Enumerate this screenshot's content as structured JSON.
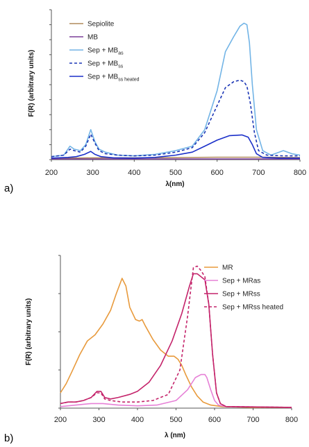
{
  "chart_data": [
    {
      "panel_label": "a)",
      "type": "line",
      "xlabel": "λ(nm)",
      "ylabel": "F(R) (arbitrary units)",
      "xlim": [
        200,
        800
      ],
      "ylim": [
        0,
        100
      ],
      "x_ticks": [
        "200",
        "300",
        "400",
        "500",
        "600",
        "700",
        "800"
      ],
      "y_tick_labels_shown": false,
      "grid": false,
      "legend_position": "top-left",
      "series": [
        {
          "name": "Sepiolite",
          "label_main": "Sepiolite",
          "label_sub": "",
          "color": "#b08a5c",
          "dash": "solid",
          "points": [
            [
              200,
              0.8
            ],
            [
              300,
              1.2
            ],
            [
              400,
              1.2
            ],
            [
              500,
              1.4
            ],
            [
              600,
              1.6
            ],
            [
              700,
              1.6
            ],
            [
              800,
              1.4
            ]
          ]
        },
        {
          "name": "MB",
          "label_main": "MB",
          "label_sub": "",
          "color": "#7b3f98",
          "dash": "solid",
          "points": [
            [
              200,
              0.4
            ],
            [
              800,
              0.4
            ]
          ]
        },
        {
          "name": "Sep + MBas",
          "label_main": "Sep + MB",
          "label_sub": "as",
          "color": "#72b4e6",
          "dash": "solid",
          "points": [
            [
              200,
              2
            ],
            [
              230,
              3
            ],
            [
              245,
              9
            ],
            [
              255,
              7
            ],
            [
              270,
              6
            ],
            [
              283,
              10
            ],
            [
              295,
              20
            ],
            [
              305,
              12
            ],
            [
              315,
              7
            ],
            [
              330,
              5
            ],
            [
              360,
              3
            ],
            [
              400,
              2.5
            ],
            [
              450,
              3.5
            ],
            [
              500,
              6
            ],
            [
              540,
              9
            ],
            [
              570,
              20
            ],
            [
              600,
              46
            ],
            [
              620,
              72
            ],
            [
              640,
              82
            ],
            [
              655,
              89
            ],
            [
              665,
              91
            ],
            [
              672,
              90
            ],
            [
              678,
              78
            ],
            [
              685,
              50
            ],
            [
              695,
              20
            ],
            [
              710,
              6
            ],
            [
              730,
              3
            ],
            [
              760,
              6
            ],
            [
              780,
              4
            ],
            [
              800,
              3
            ]
          ]
        },
        {
          "name": "Sep + MBss",
          "label_main": "Sep + MB",
          "label_sub": "ss",
          "color": "#1a35b5",
          "dash": "dashed",
          "points": [
            [
              200,
              2
            ],
            [
              230,
              3
            ],
            [
              245,
              7
            ],
            [
              255,
              6
            ],
            [
              270,
              5
            ],
            [
              283,
              9
            ],
            [
              295,
              17
            ],
            [
              305,
              11
            ],
            [
              315,
              6
            ],
            [
              330,
              4
            ],
            [
              360,
              3
            ],
            [
              400,
              2.5
            ],
            [
              450,
              3
            ],
            [
              500,
              5
            ],
            [
              540,
              8
            ],
            [
              570,
              18
            ],
            [
              600,
              36
            ],
            [
              620,
              48
            ],
            [
              640,
              52
            ],
            [
              655,
              53
            ],
            [
              665,
              52
            ],
            [
              672,
              49
            ],
            [
              680,
              38
            ],
            [
              690,
              18
            ],
            [
              700,
              6
            ],
            [
              720,
              3
            ],
            [
              760,
              2.5
            ],
            [
              800,
              2.5
            ]
          ]
        },
        {
          "name": "Sep + MBss heated",
          "label_main": "Sep + MB",
          "label_sub": "ss heated",
          "color": "#1a2fc9",
          "dash": "solid",
          "points": [
            [
              200,
              1
            ],
            [
              240,
              1.5
            ],
            [
              260,
              2
            ],
            [
              280,
              3.5
            ],
            [
              295,
              5.5
            ],
            [
              305,
              3.5
            ],
            [
              320,
              2
            ],
            [
              350,
              1.2
            ],
            [
              400,
              1
            ],
            [
              450,
              1.5
            ],
            [
              500,
              3
            ],
            [
              540,
              5
            ],
            [
              570,
              9
            ],
            [
              600,
              13
            ],
            [
              630,
              16
            ],
            [
              660,
              16.5
            ],
            [
              675,
              15
            ],
            [
              685,
              10
            ],
            [
              695,
              4
            ],
            [
              710,
              1.5
            ],
            [
              750,
              1
            ],
            [
              800,
              1
            ]
          ]
        }
      ]
    },
    {
      "panel_label": "b)",
      "type": "line",
      "xlabel": "λ (nm)",
      "ylabel": "F(R) (arbitrary units)",
      "xlim": [
        200,
        800
      ],
      "ylim": [
        0,
        100
      ],
      "x_ticks": [
        "200",
        "300",
        "400",
        "500",
        "600",
        "700",
        "800"
      ],
      "y_tick_labels_shown": false,
      "grid": false,
      "legend_position": "top-right",
      "series": [
        {
          "name": "MR",
          "label_main": "MR",
          "label_sub": "",
          "color": "#e89a3c",
          "dash": "solid",
          "points": [
            [
              200,
              10
            ],
            [
              215,
              16
            ],
            [
              230,
              24
            ],
            [
              250,
              35
            ],
            [
              270,
              44
            ],
            [
              290,
              48
            ],
            [
              310,
              55
            ],
            [
              330,
              64
            ],
            [
              345,
              75
            ],
            [
              360,
              85
            ],
            [
              370,
              80
            ],
            [
              380,
              66
            ],
            [
              395,
              58
            ],
            [
              405,
              57
            ],
            [
              412,
              58
            ],
            [
              420,
              54
            ],
            [
              440,
              45
            ],
            [
              460,
              38
            ],
            [
              480,
              34
            ],
            [
              495,
              34
            ],
            [
              505,
              32
            ],
            [
              515,
              28
            ],
            [
              525,
              22
            ],
            [
              540,
              14
            ],
            [
              555,
              8
            ],
            [
              570,
              4
            ],
            [
              590,
              2
            ],
            [
              620,
              1
            ],
            [
              700,
              0.5
            ],
            [
              800,
              0.5
            ]
          ]
        },
        {
          "name": "Sep + MRas",
          "label_main": "Sep + MRas",
          "label_sub": "",
          "color": "#e680d6",
          "dash": "solid",
          "points": [
            [
              200,
              1
            ],
            [
              240,
              2
            ],
            [
              280,
              3
            ],
            [
              310,
              3
            ],
            [
              350,
              2
            ],
            [
              400,
              1.5
            ],
            [
              450,
              2
            ],
            [
              500,
              5
            ],
            [
              530,
              12
            ],
            [
              550,
              20
            ],
            [
              565,
              22
            ],
            [
              575,
              22
            ],
            [
              580,
              20
            ],
            [
              590,
              12
            ],
            [
              600,
              5
            ],
            [
              610,
              2
            ],
            [
              630,
              1
            ],
            [
              800,
              0.5
            ]
          ]
        },
        {
          "name": "Sep + MRss",
          "label_main": "Sep + MRss",
          "label_sub": "",
          "color": "#c4236a",
          "dash": "solid",
          "points": [
            [
              200,
              3
            ],
            [
              220,
              4
            ],
            [
              240,
              4
            ],
            [
              260,
              5
            ],
            [
              280,
              7
            ],
            [
              295,
              11
            ],
            [
              305,
              11
            ],
            [
              315,
              7
            ],
            [
              330,
              6
            ],
            [
              350,
              7
            ],
            [
              380,
              9
            ],
            [
              400,
              11
            ],
            [
              430,
              17
            ],
            [
              460,
              28
            ],
            [
              490,
              44
            ],
            [
              515,
              62
            ],
            [
              535,
              80
            ],
            [
              545,
              88
            ],
            [
              555,
              88
            ],
            [
              565,
              86
            ],
            [
              575,
              84
            ],
            [
              585,
              68
            ],
            [
              595,
              35
            ],
            [
              605,
              10
            ],
            [
              615,
              3
            ],
            [
              630,
              1
            ],
            [
              800,
              0.5
            ]
          ]
        },
        {
          "name": "Sep + MRss heated",
          "label_main": "Sep + MRss heated",
          "label_sub": "",
          "color": "#c4236a",
          "dash": "dashed",
          "points": [
            [
              200,
              3
            ],
            [
              220,
              4
            ],
            [
              240,
              4
            ],
            [
              260,
              5
            ],
            [
              280,
              7
            ],
            [
              295,
              10
            ],
            [
              305,
              10
            ],
            [
              315,
              6
            ],
            [
              330,
              5
            ],
            [
              360,
              4
            ],
            [
              400,
              4
            ],
            [
              440,
              5
            ],
            [
              480,
              9
            ],
            [
              510,
              25
            ],
            [
              530,
              60
            ],
            [
              545,
              92
            ],
            [
              555,
              93
            ],
            [
              565,
              90
            ],
            [
              575,
              86
            ],
            [
              585,
              68
            ],
            [
              595,
              35
            ],
            [
              605,
              10
            ],
            [
              615,
              3
            ],
            [
              630,
              1
            ],
            [
              800,
              0.5
            ]
          ]
        }
      ]
    }
  ]
}
